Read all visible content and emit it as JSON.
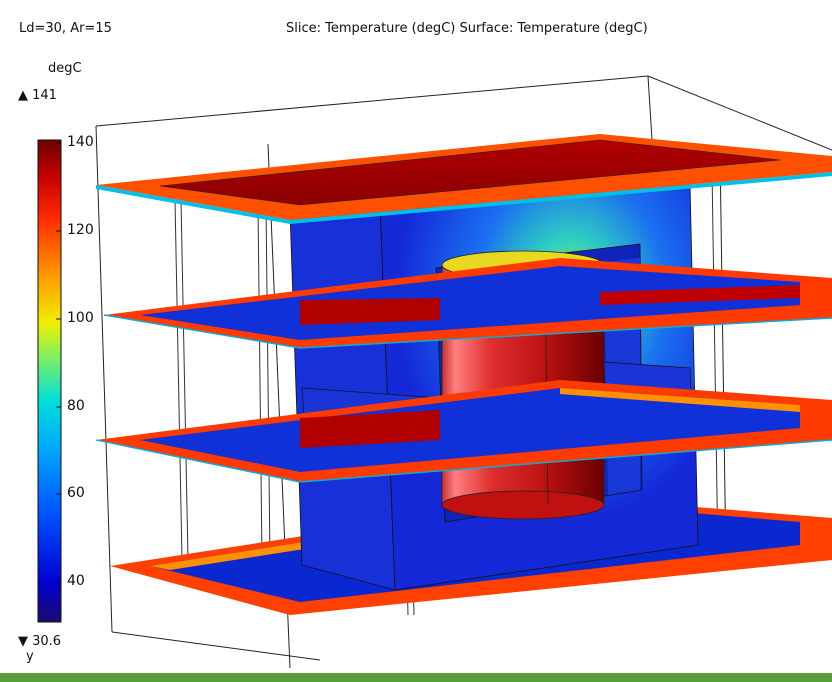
{
  "header": {
    "params": "Ld=30, Ar=15",
    "title": "Slice: Temperature (degC)  Surface: Temperature (degC)"
  },
  "colorbar": {
    "unit": "degC",
    "max_label": "▲ 141",
    "min_label": "▼ 30.6",
    "ticks": [
      "140",
      "120",
      "100",
      "80",
      "60",
      "40"
    ],
    "colormap": [
      "#1a0a6e",
      "#0000d0",
      "#0040ff",
      "#0090ff",
      "#00d8e8",
      "#40f0a0",
      "#c8f020",
      "#ffe000",
      "#ff9000",
      "#ff3000",
      "#d00000",
      "#7a0000"
    ]
  },
  "axis": {
    "label": "y"
  },
  "colors": {
    "hot": "#c00000",
    "warm": "#ff5a00",
    "mid": "#00c8e0",
    "cold": "#1a2ad8",
    "accent_bar": "#5a9e3c"
  }
}
